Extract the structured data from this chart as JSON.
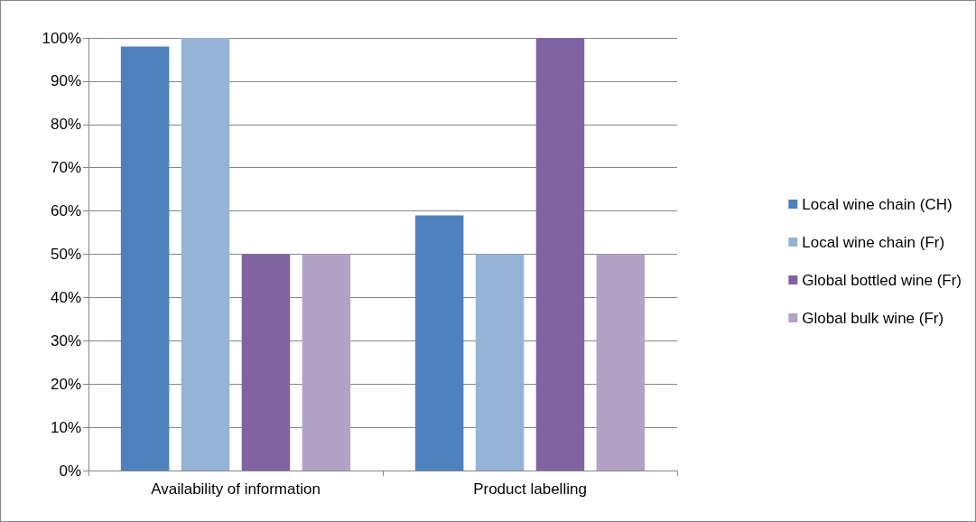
{
  "chart_data": {
    "type": "bar",
    "categories": [
      "Availability of information",
      "Product labelling"
    ],
    "series": [
      {
        "name": "Local wine chain (CH)",
        "color": "#4f81bd",
        "values": [
          98,
          59
        ]
      },
      {
        "name": "Local wine chain (Fr)",
        "color": "#95b3d7",
        "values": [
          100,
          50
        ]
      },
      {
        "name": "Global bottled wine (Fr)",
        "color": "#8064a2",
        "values": [
          50,
          100
        ]
      },
      {
        "name": "Global bulk wine (Fr)",
        "color": "#b3a2c7",
        "values": [
          50,
          50
        ]
      }
    ],
    "ylim": [
      0,
      100
    ],
    "yticks": [
      {
        "value": 0,
        "label": "0%"
      },
      {
        "value": 10,
        "label": "10%"
      },
      {
        "value": 20,
        "label": "20%"
      },
      {
        "value": 30,
        "label": "30%"
      },
      {
        "value": 40,
        "label": "40%"
      },
      {
        "value": 50,
        "label": "50%"
      },
      {
        "value": 60,
        "label": "60%"
      },
      {
        "value": 70,
        "label": "70%"
      },
      {
        "value": 80,
        "label": "80%"
      },
      {
        "value": 90,
        "label": "90%"
      },
      {
        "value": 100,
        "label": "100%"
      }
    ],
    "grid": "y",
    "legend": "right"
  }
}
